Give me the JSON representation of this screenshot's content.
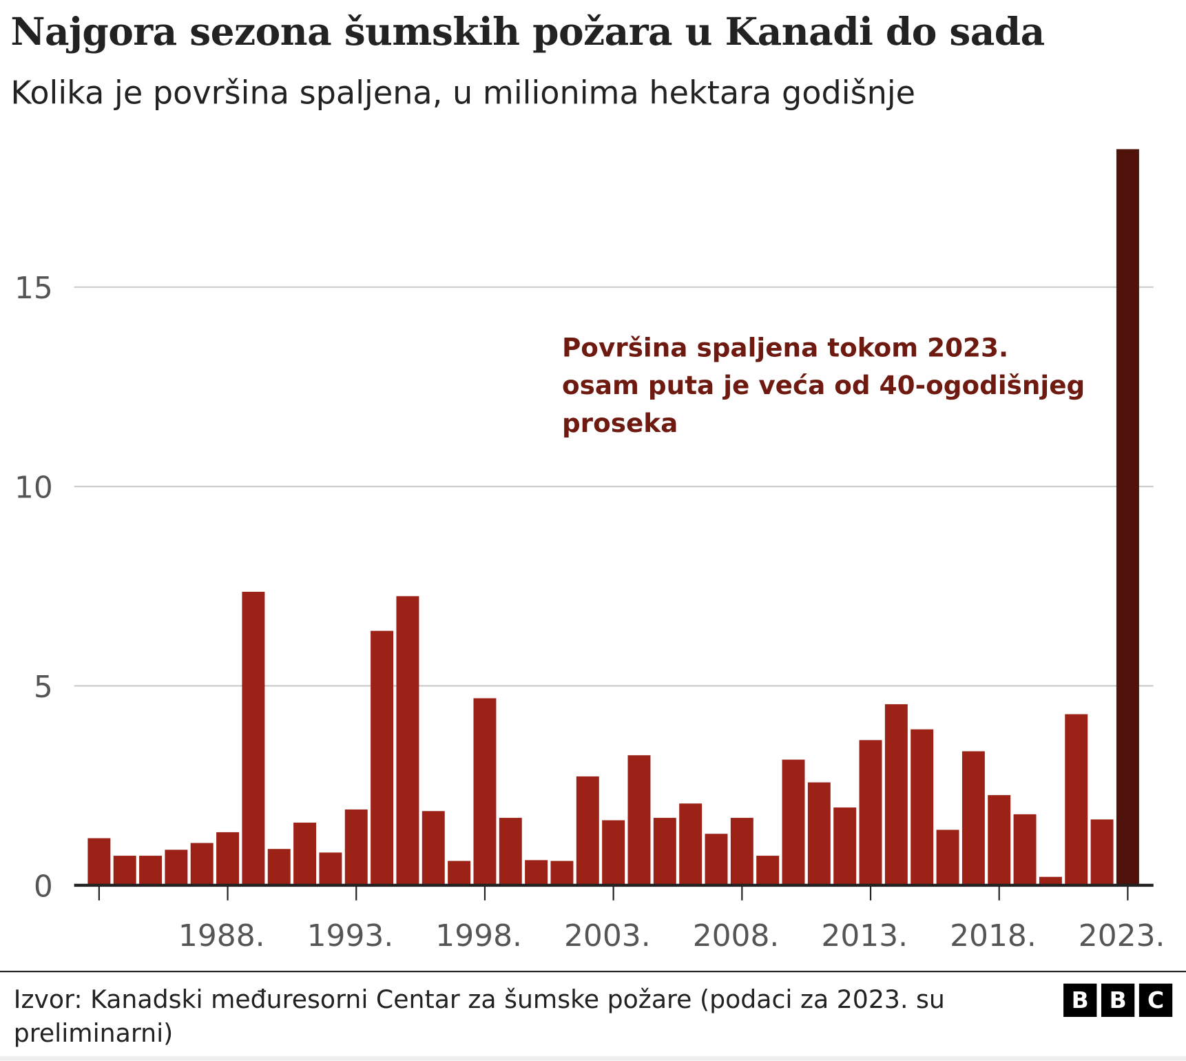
{
  "header": {
    "title": "Najgora sezona šumskih požara u Kanadi do sada",
    "subtitle": "Kolika je površina spaljena, u milionima hektara godišnje"
  },
  "chart_data": {
    "type": "bar",
    "title": "Najgora sezona šumskih požara u Kanadi do sada",
    "subtitle": "Kolika je površina spaljena, u milionima hektara godišnje",
    "categories": [
      1983,
      1984,
      1985,
      1986,
      1987,
      1988,
      1989,
      1990,
      1991,
      1992,
      1993,
      1994,
      1995,
      1996,
      1997,
      1998,
      1999,
      2000,
      2001,
      2002,
      2003,
      2004,
      2005,
      2006,
      2007,
      2008,
      2009,
      2010,
      2011,
      2012,
      2013,
      2014,
      2015,
      2016,
      2017,
      2018,
      2019,
      2020,
      2021,
      2022,
      2023
    ],
    "values": [
      1.18,
      0.74,
      0.74,
      0.89,
      1.06,
      1.33,
      7.36,
      0.91,
      1.57,
      0.82,
      1.9,
      6.38,
      7.25,
      1.86,
      0.61,
      4.69,
      1.69,
      0.63,
      0.61,
      2.73,
      1.63,
      3.26,
      1.69,
      2.05,
      1.29,
      1.69,
      0.74,
      3.15,
      2.58,
      1.95,
      3.64,
      4.54,
      3.91,
      1.39,
      3.36,
      2.26,
      1.78,
      0.21,
      4.29,
      1.65,
      18.46
    ],
    "xtick_labels": [
      "1988.",
      "1993.",
      "1998.",
      "2003.",
      "2008.",
      "2013.",
      "2018.",
      "2023."
    ],
    "xtick_years": [
      1988,
      1993,
      1998,
      2003,
      2008,
      2013,
      2018,
      2023
    ],
    "ytick_labels": [
      "0",
      "5",
      "10",
      "15"
    ],
    "yticks": [
      0,
      5,
      10,
      15
    ],
    "ylim": [
      0,
      18.5
    ],
    "grid": true,
    "colors": {
      "bar": "#9c2116",
      "highlight": "#50130c",
      "annotation": "#6e1a10"
    },
    "highlight_year": 2023,
    "annotation": [
      "Površina spaljena tokom 2023.",
      "osam puta je veća od 40-ogodišnjeg",
      "proseka"
    ]
  },
  "footer": {
    "source": "Izvor: Kanadski međuresorni Centar za šumske požare (podaci za 2023. su preliminarni)",
    "logo": "BBC",
    "logo_letters": [
      "B",
      "B",
      "C"
    ]
  }
}
